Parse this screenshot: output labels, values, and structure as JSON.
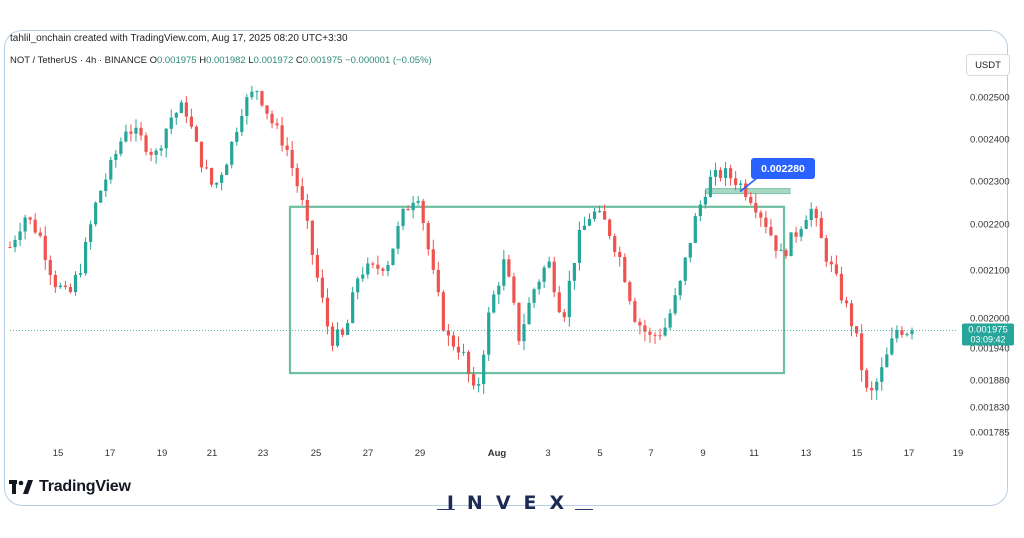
{
  "header": {
    "attribution": "tahlil_onchain created with TradingView.com, Aug 17, 2025 08:20 UTC+3:30",
    "symbol": "NOT / TetherUS · 4h · BINANCE",
    "ohlc": {
      "o_label": "O",
      "o": "0.001975",
      "h_label": "H",
      "h": "0.001982",
      "l_label": "L",
      "l": "0.001972",
      "c_label": "C",
      "c": "0.001975",
      "change": "−0.000001 (−0.05%)"
    },
    "currency": "USDT"
  },
  "chart_data": {
    "type": "candlestick",
    "y_axis": {
      "ticks": [
        "0.002500",
        "0.002400",
        "0.002300",
        "0.002200",
        "0.002100",
        "0.002000",
        "0.001940",
        "0.001880",
        "0.001830",
        "0.001785"
      ],
      "tick_values": [
        0.0025,
        0.0024,
        0.0023,
        0.0022,
        0.0021,
        0.002,
        0.00194,
        0.00188,
        0.00183,
        0.001785
      ]
    },
    "x_axis": {
      "ticks": [
        "15",
        "17",
        "19",
        "21",
        "23",
        "25",
        "27",
        "29",
        "Aug",
        "3",
        "5",
        "7",
        "9",
        "11",
        "13",
        "15",
        "17",
        "19"
      ]
    },
    "price_series": [
      0.00215,
      0.00222,
      0.00218,
      0.00208,
      0.00204,
      0.00212,
      0.00226,
      0.00234,
      0.00243,
      0.0024,
      0.00236,
      0.00245,
      0.00248,
      0.00236,
      0.00228,
      0.00236,
      0.00248,
      0.00252,
      0.00244,
      0.00238,
      0.00226,
      0.0021,
      0.00196,
      0.00196,
      0.0021,
      0.0021,
      0.00212,
      0.00222,
      0.00228,
      0.0021,
      0.00196,
      0.00194,
      0.00184,
      0.00202,
      0.00212,
      0.00196,
      0.00206,
      0.00212,
      0.002,
      0.00216,
      0.00223,
      0.0022,
      0.00212,
      0.002,
      0.00196,
      0.00198,
      0.00206,
      0.0022,
      0.0023,
      0.00232,
      0.0023,
      0.00226,
      0.0022,
      0.00213,
      0.00218,
      0.00224,
      0.00214,
      0.00206,
      0.00198,
      0.00184,
      0.0019,
      0.00198,
      0.001975
    ],
    "current_price": "0.001975",
    "countdown": "03:09:42",
    "callout": "0.002280",
    "rectangle": {
      "top": 0.00224,
      "bottom": 0.001893
    },
    "resistance_band": 0.00228,
    "colors": {
      "up": "#26a69a",
      "down": "#ef5350",
      "box": "#6cbf9f",
      "callout": "#2962ff"
    }
  },
  "branding": {
    "tradingview": "TradingView",
    "watermark": "INVEX"
  }
}
